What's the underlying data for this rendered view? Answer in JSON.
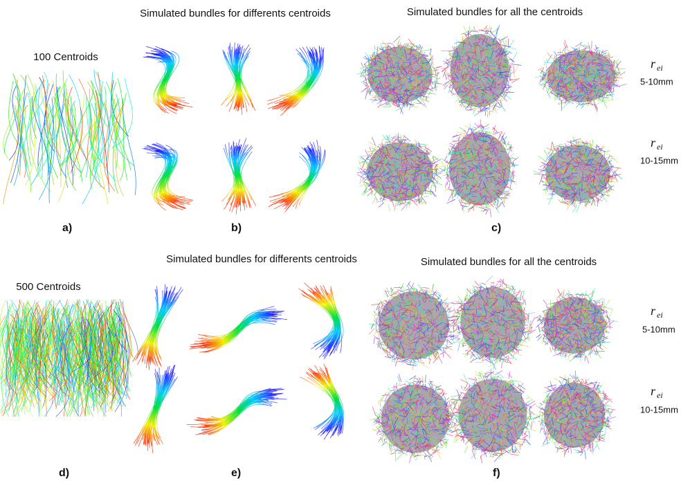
{
  "top": {
    "centroids_title": "100 Centroids",
    "bundles_title": "Simulated bundles for differents centroids",
    "all_title": "Simulated bundles for all the centroids",
    "rows": [
      {
        "symbol": "r",
        "subscript": "ei",
        "range": "5-10mm"
      },
      {
        "symbol": "r",
        "subscript": "ei",
        "range": "10-15mm"
      }
    ],
    "labels": [
      "a)",
      "b)",
      "c)"
    ]
  },
  "bottom": {
    "centroids_title": "500 Centroids",
    "bundles_title": "Simulated bundles for differents centroids",
    "all_title": "Simulated bundles for all the centroids",
    "rows": [
      {
        "symbol": "r",
        "subscript": "ei",
        "range": "5-10mm"
      },
      {
        "symbol": "r",
        "subscript": "ei",
        "range": "10-15mm"
      }
    ],
    "labels": [
      "d)",
      "e)",
      "f)"
    ]
  }
}
